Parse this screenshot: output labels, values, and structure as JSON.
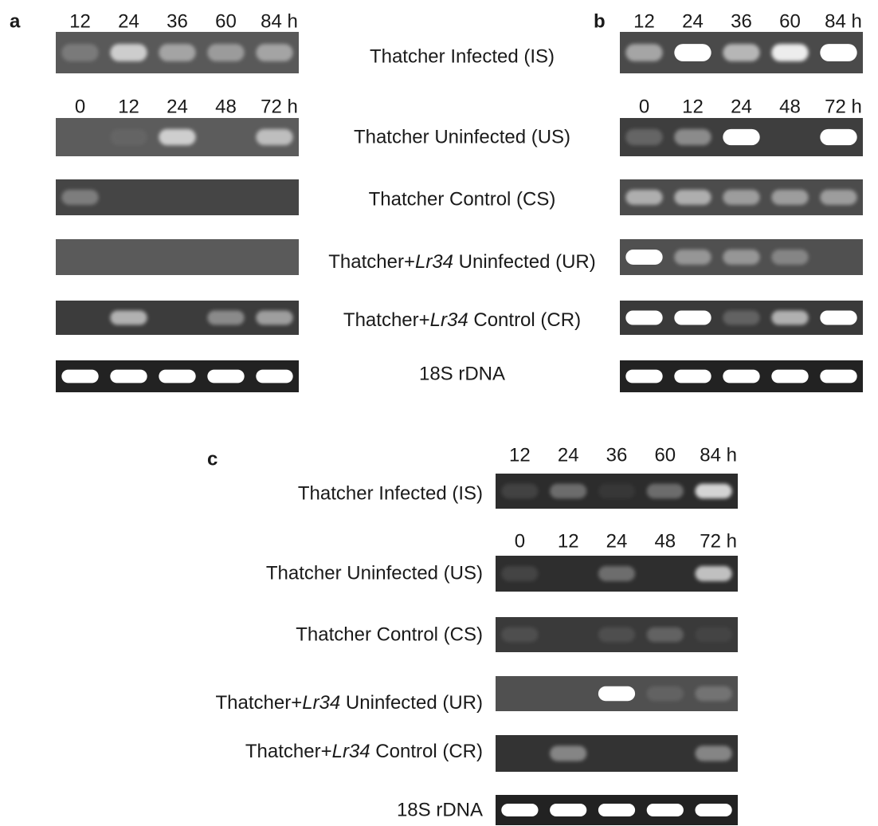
{
  "panel_a": {
    "label": "a",
    "headers": [
      [
        "12",
        "24",
        "36",
        "60",
        "84 h"
      ],
      [
        "0",
        "12",
        "24",
        "48",
        "72 h"
      ]
    ]
  },
  "panel_b": {
    "label": "b",
    "headers": [
      [
        "12",
        "24",
        "36",
        "60",
        "84 h"
      ],
      [
        "0",
        "12",
        "24",
        "48",
        "72 h"
      ]
    ]
  },
  "row_labels": [
    "Thatcher Infected (IS)",
    "Thatcher Uninfected (US)",
    "Thatcher Control (CS)",
    {
      "prefix": "Thatcher+",
      "italic": "Lr34",
      "suffix": " Uninfected (UR)"
    },
    {
      "prefix": "Thatcher+",
      "italic": "Lr34",
      "suffix": " Control (CR)"
    },
    "18S rDNA"
  ],
  "panel_c": {
    "label": "c",
    "headers": [
      [
        "12",
        "24",
        "36",
        "60",
        "84 h"
      ],
      [
        "0",
        "12",
        "24",
        "48",
        "72 h"
      ]
    ],
    "row_labels": [
      "Thatcher Infected (IS)",
      "Thatcher Uninfected (US)",
      "Thatcher Control (CS)",
      {
        "prefix": "Thatcher+",
        "italic": "Lr34",
        "suffix": " Uninfected (UR)"
      },
      {
        "prefix": "Thatcher+",
        "italic": "Lr34",
        "suffix": " Control (CR)"
      },
      "18S rDNA"
    ]
  }
}
